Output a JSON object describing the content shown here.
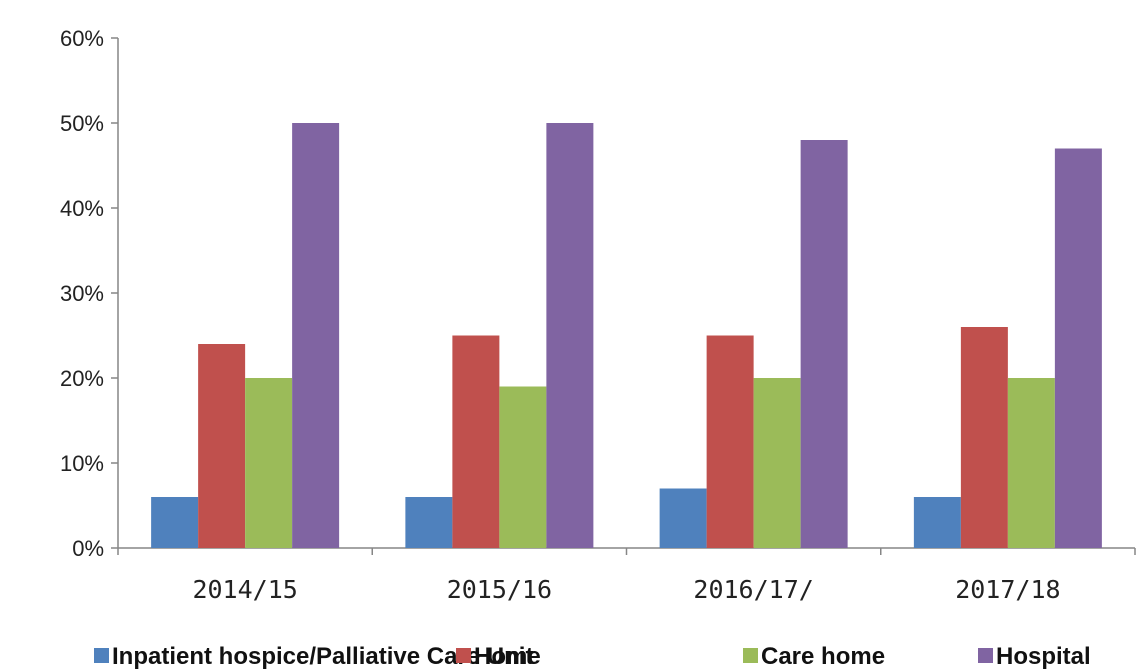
{
  "chart_data": {
    "type": "bar",
    "categories": [
      "2014/15",
      "2015/16",
      "2016/17/",
      "2017/18"
    ],
    "series": [
      {
        "name": "Inpatient hospice/Palliative Care Unit",
        "values": [
          6,
          6,
          7,
          6
        ],
        "color": "#4f81bd"
      },
      {
        "name": "Home",
        "values": [
          24,
          25,
          25,
          26
        ],
        "color": "#c0504d"
      },
      {
        "name": "Care home",
        "values": [
          20,
          19,
          20,
          20
        ],
        "color": "#9bbb59"
      },
      {
        "name": "Hospital",
        "values": [
          50,
          50,
          48,
          47
        ],
        "color": "#8064a2"
      }
    ],
    "y_ticks": [
      "0%",
      "10%",
      "20%",
      "30%",
      "40%",
      "50%",
      "60%"
    ],
    "ylim": [
      0,
      60
    ],
    "title": "",
    "xlabel": "",
    "ylabel": "",
    "grid": false,
    "legend_position": "bottom"
  }
}
